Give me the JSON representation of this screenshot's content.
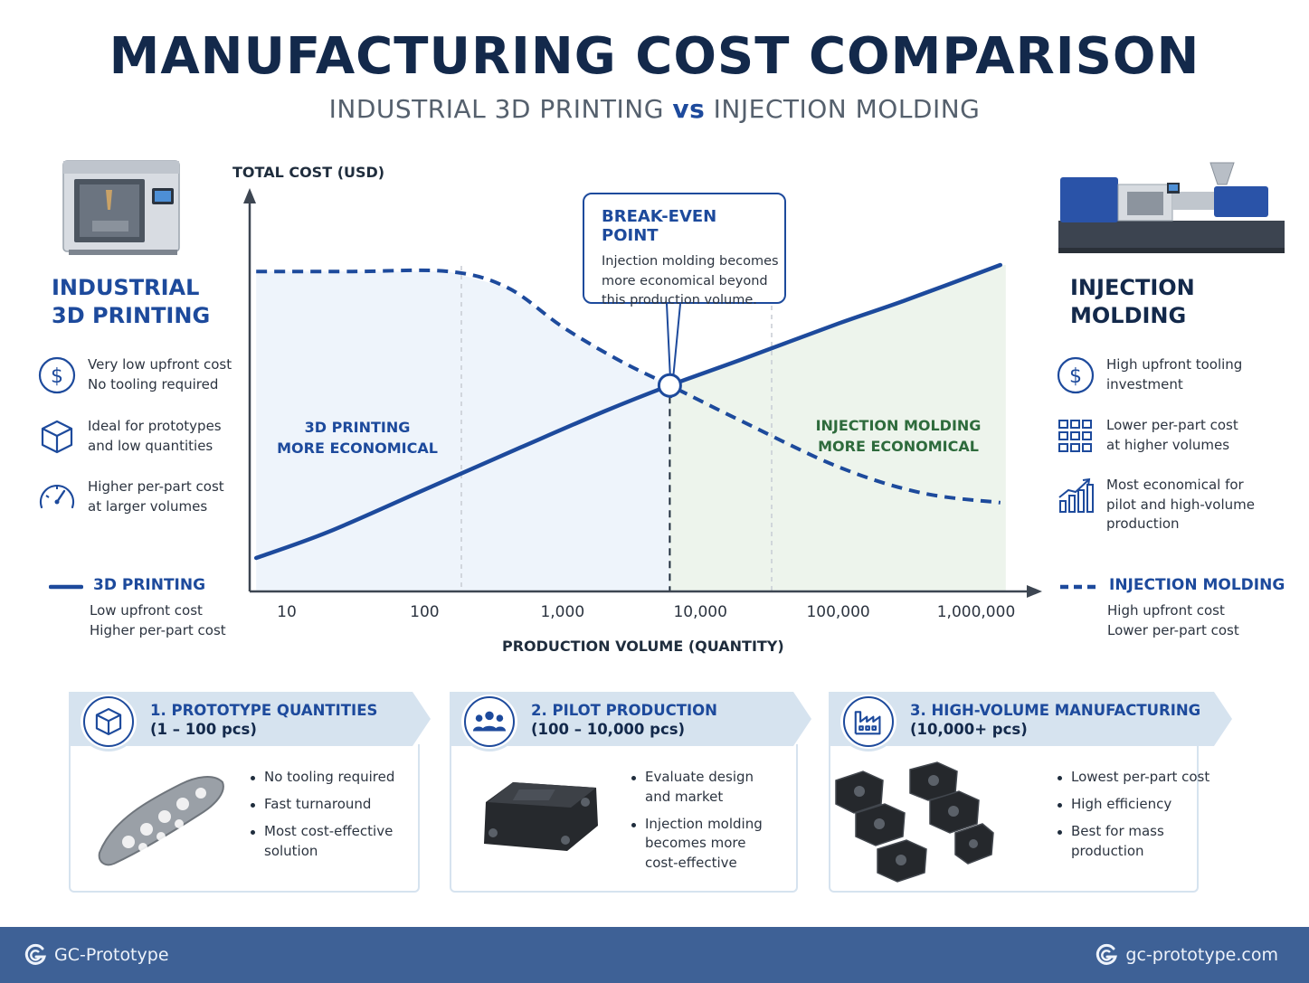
{
  "header": {
    "title": "MANUFACTURING COST COMPARISON",
    "subtitle_left": "INDUSTRIAL 3D PRINTING",
    "subtitle_vs": "vs",
    "subtitle_right": "INJECTION MOLDING"
  },
  "left_panel": {
    "heading_line1": "INDUSTRIAL",
    "heading_line2": "3D PRINTING",
    "features": [
      {
        "icon": "dollar-circle-icon",
        "line1": "Very low upfront cost",
        "line2": "No tooling required"
      },
      {
        "icon": "cube-icon",
        "line1": "Ideal for prototypes",
        "line2": "and low quantities"
      },
      {
        "icon": "speedometer-icon",
        "line1": "Higher per-part cost",
        "line2": "at larger volumes"
      }
    ],
    "legend": {
      "name": "3D PRINTING",
      "line1": "Low upfront cost",
      "line2": "Higher per-part cost"
    }
  },
  "right_panel": {
    "heading_line1": "INJECTION",
    "heading_line2": "MOLDING",
    "features": [
      {
        "icon": "dollar-circle-icon",
        "line1": "High upfront tooling",
        "line2": "investment",
        "line3": ""
      },
      {
        "icon": "grid-parts-icon",
        "line1": "Lower per-part cost",
        "line2": "at higher volumes",
        "line3": ""
      },
      {
        "icon": "growth-chart-icon",
        "line1": "Most economical for",
        "line2": "pilot and high-volume",
        "line3": "production"
      }
    ],
    "legend": {
      "name": "INJECTION MOLDING",
      "line1": "High upfront cost",
      "line2": "Lower per-part cost"
    }
  },
  "chart_data": {
    "type": "line",
    "ylabel": "TOTAL COST (USD)",
    "xlabel": "PRODUCTION VOLUME (QUANTITY)",
    "x_scale": "log",
    "x_ticks": [
      10,
      100,
      1000,
      10000,
      100000,
      1000000
    ],
    "x_tick_labels": [
      "10",
      "100",
      "1,000",
      "10,000",
      "100,000",
      "1,000,000"
    ],
    "y_ticks": [],
    "break_even_x": 6000,
    "series": [
      {
        "name": "3D PRINTING",
        "style": "solid",
        "color": "#1d4a9c",
        "x": [
          6,
          20,
          100,
          500,
          2000,
          6000,
          20000,
          100000,
          300000,
          1500000
        ],
        "y": [
          0.1,
          0.18,
          0.31,
          0.44,
          0.55,
          0.63,
          0.71,
          0.82,
          0.89,
          1.0
        ]
      },
      {
        "name": "INJECTION MOLDING",
        "style": "dashed",
        "color": "#1d4a9c",
        "x": [
          6,
          30,
          150,
          400,
          1000,
          2500,
          6000,
          20000,
          100000,
          400000,
          1500000
        ],
        "y": [
          0.98,
          0.98,
          0.98,
          0.93,
          0.81,
          0.71,
          0.63,
          0.52,
          0.38,
          0.3,
          0.27
        ]
      }
    ],
    "regions": [
      {
        "label_line1": "3D PRINTING",
        "label_line2": "MORE ECONOMICAL",
        "color": "#eef4fb"
      },
      {
        "label_line1": "INJECTION MOLDING",
        "label_line2": "MORE ECONOMICAL",
        "color": "#edf4ec"
      }
    ],
    "annotation": {
      "title": "BREAK-EVEN POINT",
      "line1": "Injection molding becomes",
      "line2": "more economical beyond",
      "line3": "this production volume."
    },
    "legend_position": "bottom-left and bottom-right",
    "grid": false
  },
  "cards": [
    {
      "icon": "cube-icon",
      "title": "1. PROTOTYPE QUANTITIES",
      "subtitle": "(1 – 100 pcs)",
      "bullets": [
        [
          "No tooling required"
        ],
        [
          "Fast turnaround"
        ],
        [
          "Most cost-effective",
          "solution"
        ]
      ]
    },
    {
      "icon": "people-icon",
      "title": "2. PILOT PRODUCTION",
      "subtitle": "(100 – 10,000 pcs)",
      "bullets": [
        [
          "Evaluate design",
          "and market"
        ],
        [
          "Injection molding",
          "becomes more",
          "cost-effective"
        ]
      ]
    },
    {
      "icon": "factory-icon",
      "title": "3. HIGH-VOLUME MANUFACTURING",
      "subtitle": "(10,000+ pcs)",
      "bullets": [
        [
          "Lowest per-part cost"
        ],
        [
          "High efficiency"
        ],
        [
          "Best for mass",
          "production"
        ]
      ]
    }
  ],
  "footer": {
    "brand": "GC-Prototype",
    "website": "gc-prototype.com",
    "logo_icon": "gc-logo-icon"
  },
  "colors": {
    "navy": "#13294b",
    "accent_blue": "#1d4a9c",
    "green": "#2e6b3c",
    "footer_bg": "#3e6196"
  }
}
